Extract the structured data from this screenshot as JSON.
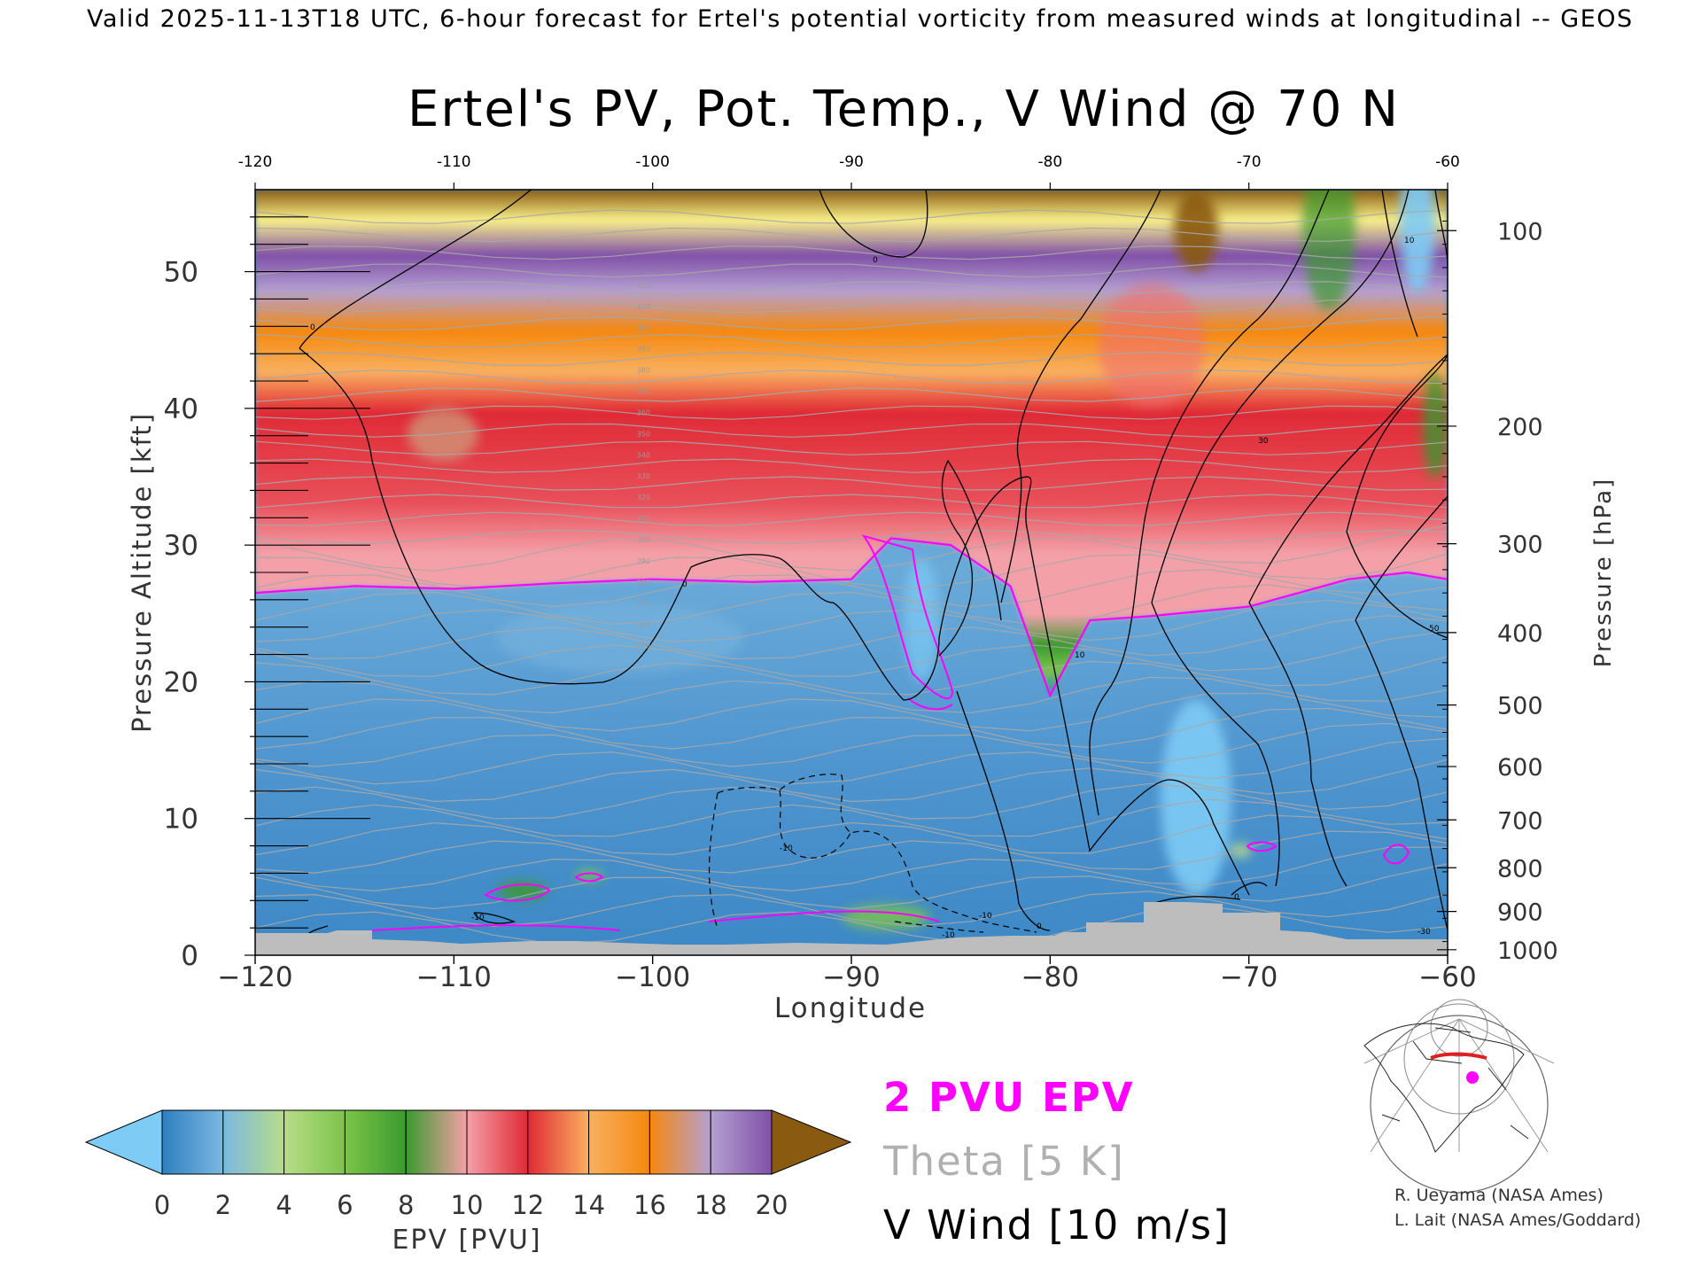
{
  "header": {
    "valid_line": "Valid 2025-11-13T18 UTC, 6-hour forecast for Ertel's potential vorticity from measured winds at longitudinal -- GEOS"
  },
  "chart_data": {
    "type": "heatmap",
    "title": "Ertel's PV, Pot. Temp., V Wind @ 70 N",
    "xlabel": "Longitude",
    "ylabel_left": "Pressure Altitude [kft]",
    "ylabel_right": "Pressure [hPa]",
    "xlim": [
      -120,
      -60
    ],
    "ylim_kft": [
      0,
      56
    ],
    "x_ticks": [
      "-120",
      "-110",
      "-100",
      "-90",
      "-80",
      "-70",
      "-60"
    ],
    "y_ticks_kft": [
      "0",
      "10",
      "20",
      "30",
      "40",
      "50"
    ],
    "y_ticks_hpa": [
      {
        "label": "100",
        "kft": 53.0
      },
      {
        "label": "200",
        "kft": 38.7
      },
      {
        "label": "300",
        "kft": 30.1
      },
      {
        "label": "400",
        "kft": 23.6
      },
      {
        "label": "500",
        "kft": 18.3
      },
      {
        "label": "600",
        "kft": 13.8
      },
      {
        "label": "700",
        "kft": 9.9
      },
      {
        "label": "800",
        "kft": 6.4
      },
      {
        "label": "900",
        "kft": 3.2
      },
      {
        "label": "1000",
        "kft": 0.4
      }
    ],
    "colorbar": {
      "label": "EPV [PVU]",
      "ticks": [
        "0",
        "2",
        "4",
        "6",
        "8",
        "10",
        "12",
        "14",
        "16",
        "18",
        "20"
      ],
      "colors": [
        "#2f7fc0",
        "#7bb8e0",
        "#b8dc8a",
        "#7cc44a",
        "#3a9a2e",
        "#f4a0a8",
        "#e02a36",
        "#f9b060",
        "#f5880e",
        "#b4a0d0",
        "#8050a8",
        "#f8f08a",
        "#8a5a10"
      ],
      "under_color": "#7ecbf5",
      "over_color": "#8a5a10"
    },
    "tropopause_kft_by_lon": {
      "lon": [
        -120,
        -115,
        -110,
        -105,
        -100,
        -95,
        -90,
        -88,
        -85,
        -82,
        -80,
        -78,
        -75,
        -70,
        -65,
        -62,
        -60
      ],
      "kft": [
        26.5,
        27.0,
        26.8,
        27.2,
        27.5,
        27.3,
        27.5,
        30.5,
        30.0,
        27.0,
        19.0,
        24.5,
        24.8,
        25.5,
        27.5,
        28.0,
        27.5
      ]
    },
    "legend": [
      {
        "label": "2 PVU EPV",
        "color": "#ff00ff"
      },
      {
        "label": "Theta [5 K]",
        "color": "#b0b0b0"
      },
      {
        "label": "V Wind [10 m/s]",
        "color": "#000000"
      }
    ],
    "contour_labels": {
      "wind": [
        "0",
        "0",
        "0",
        "10",
        "30",
        "50",
        "-10",
        "-10",
        "-10",
        "-10",
        "0",
        "10",
        "30"
      ],
      "theta": [
        "420",
        "410",
        "400",
        "390",
        "380",
        "370",
        "360",
        "350",
        "340",
        "330",
        "320",
        "310",
        "300",
        "290",
        "280",
        "270",
        "260",
        "250"
      ]
    }
  },
  "credits": {
    "line1": "R. Ueyama (NASA Ames)",
    "line2": "L. Lait (NASA Ames/Goddard)"
  }
}
